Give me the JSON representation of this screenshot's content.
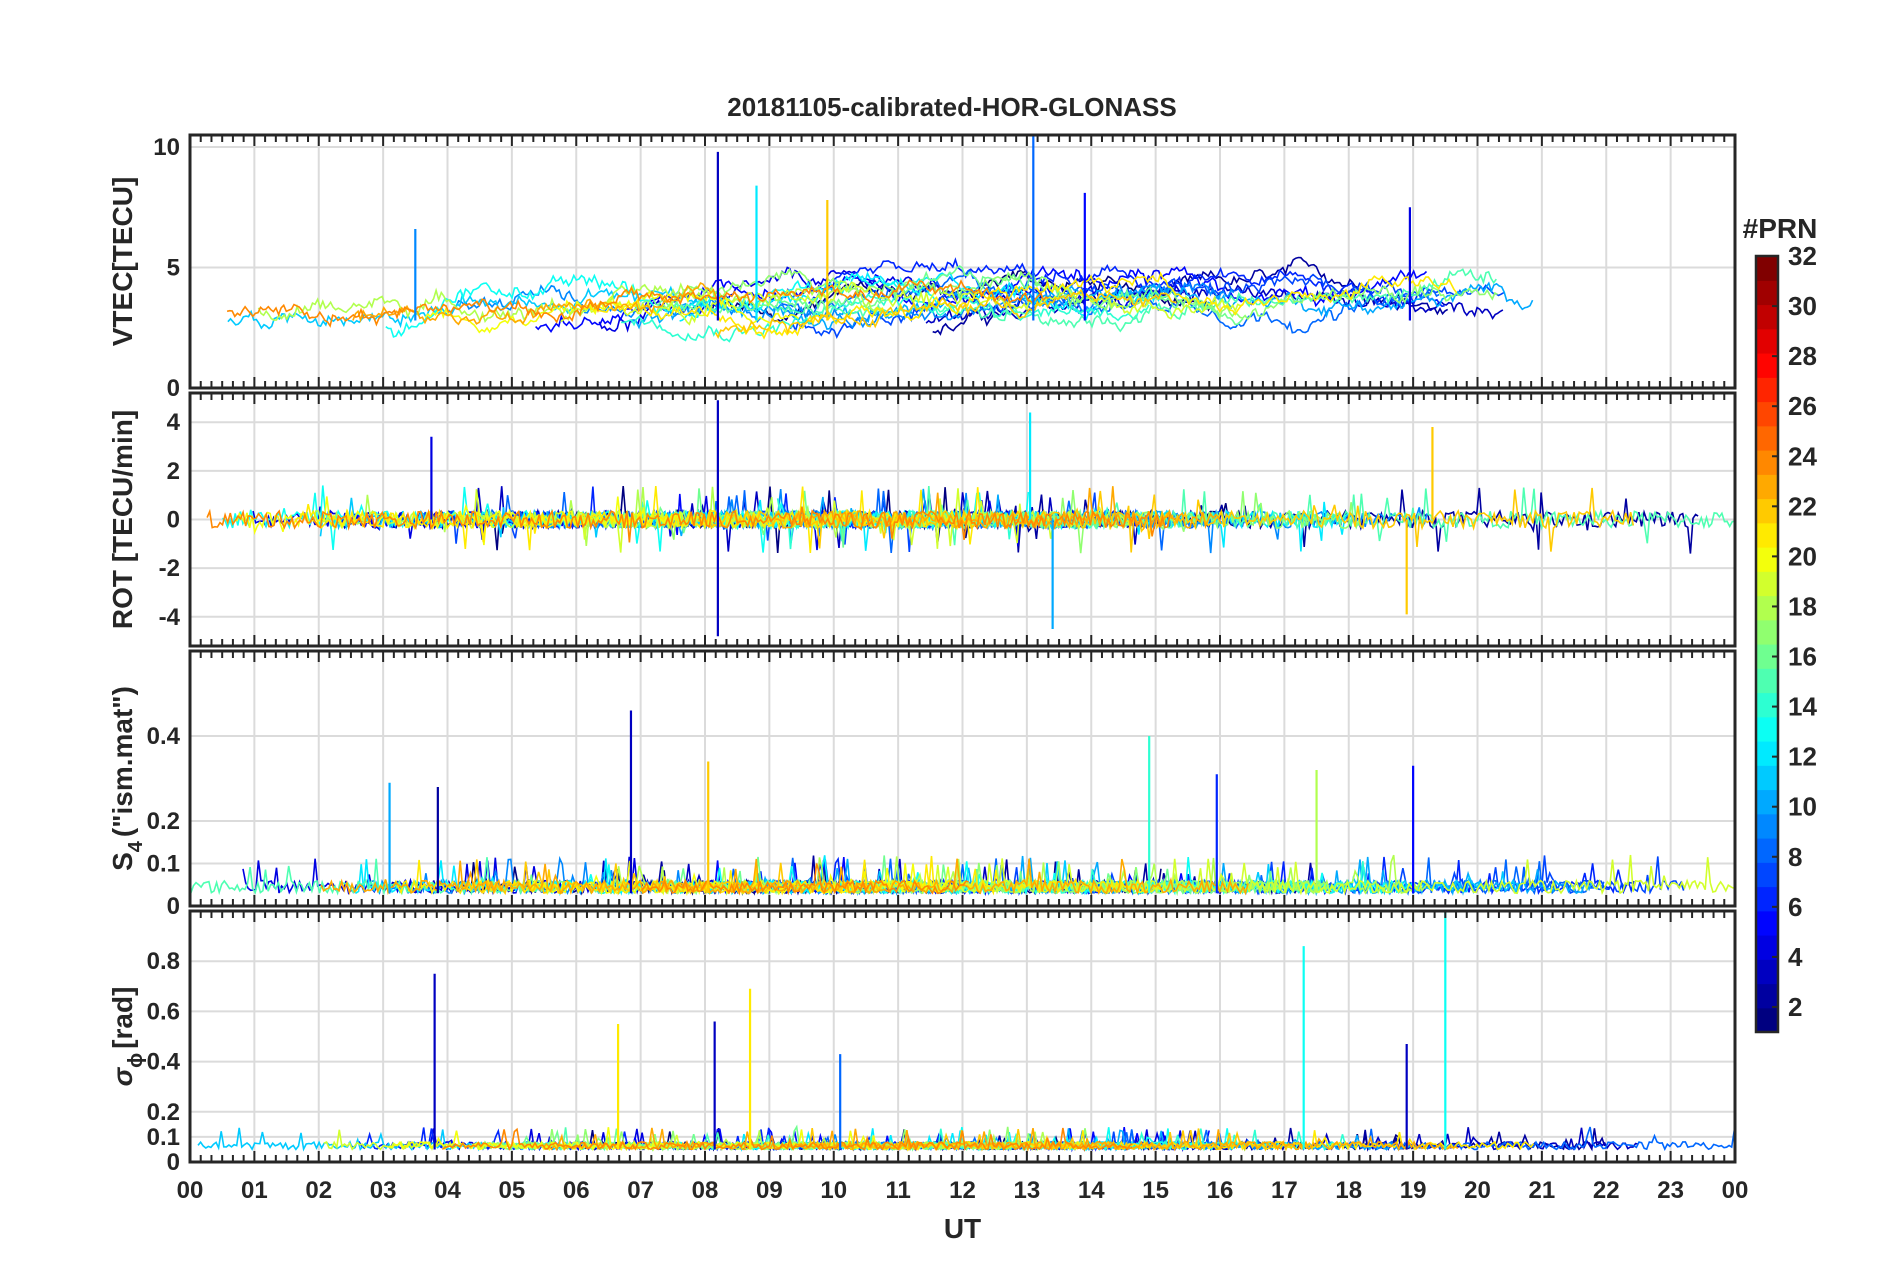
{
  "title": "20181105-calibrated-HOR-GLONASS",
  "chart_data": [
    {
      "id": "vtec",
      "type": "line",
      "title": "20181105-calibrated-HOR-GLONASS",
      "ylabel": "VTEC[TECU]",
      "xlabel": "",
      "ylim": [
        0,
        10.5
      ],
      "yticks": [
        0,
        5,
        10
      ],
      "ytick_labels": [
        "0",
        "5",
        "10"
      ],
      "baseline": 2.8,
      "amp": 1.2,
      "spikiness": 0.3,
      "grid": true,
      "series_hint": "one line per GLONASS PRN (1-32), colour-coded by PRN",
      "highlights": [
        {
          "prn": 9,
          "t": 3.5,
          "v": 6.6
        },
        {
          "prn": 3,
          "t": 8.2,
          "v": 9.8
        },
        {
          "prn": 12,
          "t": 8.8,
          "v": 8.4
        },
        {
          "prn": 8,
          "t": 13.1,
          "v": 10.8
        },
        {
          "prn": 5,
          "t": 13.9,
          "v": 8.1
        },
        {
          "prn": 4,
          "t": 18.95,
          "v": 7.5
        },
        {
          "prn": 22,
          "t": 9.9,
          "v": 7.8
        }
      ]
    },
    {
      "id": "rot",
      "type": "line",
      "ylabel": "ROT [TECU/min]",
      "xlabel": "",
      "ylim": [
        -5.2,
        5.2
      ],
      "yticks": [
        -4,
        -2,
        0,
        2,
        4
      ],
      "ytick_labels": [
        "-4",
        "-2",
        "0",
        "2",
        "4"
      ],
      "baseline": 0,
      "amp": 0.35,
      "spikiness": 1.5,
      "grid": true,
      "series_hint": "rate of TEC per PRN",
      "highlights": [
        {
          "prn": 3,
          "t": 8.2,
          "v": 4.9
        },
        {
          "prn": 3,
          "t": 8.2,
          "v": -4.8
        },
        {
          "prn": 12,
          "t": 13.05,
          "v": 4.4
        },
        {
          "prn": 10,
          "t": 13.4,
          "v": -4.5
        },
        {
          "prn": 4,
          "t": 3.75,
          "v": 3.4
        },
        {
          "prn": 22,
          "t": 18.9,
          "v": -3.9
        },
        {
          "prn": 22,
          "t": 19.3,
          "v": 3.8
        }
      ]
    },
    {
      "id": "s4",
      "type": "line",
      "ylabel_main": "S",
      "ylabel_sub": "4",
      "ylabel_rest": "(\"ism.mat\")",
      "xlabel": "",
      "ylim": [
        0,
        0.6
      ],
      "yticks": [
        0,
        0.1,
        0.2,
        0.4
      ],
      "ytick_labels": [
        "0",
        "0.1",
        "0.2",
        "0.4"
      ],
      "baseline": 0.03,
      "amp": 0.03,
      "spikiness": 1.2,
      "grid": true,
      "series_hint": "amplitude scintillation index S4 per PRN",
      "highlights": [
        {
          "prn": 3,
          "t": 6.85,
          "v": 0.46
        },
        {
          "prn": 14,
          "t": 14.9,
          "v": 0.4
        },
        {
          "prn": 22,
          "t": 8.05,
          "v": 0.34
        },
        {
          "prn": 5,
          "t": 19.0,
          "v": 0.33
        },
        {
          "prn": 6,
          "t": 15.95,
          "v": 0.31
        },
        {
          "prn": 10,
          "t": 3.1,
          "v": 0.29
        },
        {
          "prn": 2,
          "t": 3.85,
          "v": 0.28
        },
        {
          "prn": 18,
          "t": 17.5,
          "v": 0.32
        }
      ]
    },
    {
      "id": "sigphi",
      "type": "line",
      "ylabel_main": "σ",
      "ylabel_sub": "ϕ",
      "ylabel_rest": "[rad]",
      "xlabel": "UT",
      "ylim": [
        0,
        1.0
      ],
      "yticks": [
        0,
        0.1,
        0.2,
        0.4,
        0.6,
        0.8
      ],
      "ytick_labels": [
        "0",
        "0.1",
        "0.2",
        "0.4",
        "0.6",
        "0.8"
      ],
      "baseline": 0.05,
      "amp": 0.03,
      "spikiness": 1.0,
      "grid": true,
      "series_hint": "phase scintillation index per PRN",
      "highlights": [
        {
          "prn": 3,
          "t": 3.8,
          "v": 0.75
        },
        {
          "prn": 21,
          "t": 8.7,
          "v": 0.69
        },
        {
          "prn": 21,
          "t": 6.65,
          "v": 0.55
        },
        {
          "prn": 3,
          "t": 8.15,
          "v": 0.56
        },
        {
          "prn": 13,
          "t": 17.3,
          "v": 0.86
        },
        {
          "prn": 13,
          "t": 19.5,
          "v": 1.0
        },
        {
          "prn": 3,
          "t": 18.9,
          "v": 0.47
        },
        {
          "prn": 8,
          "t": 10.1,
          "v": 0.43
        }
      ]
    }
  ],
  "x_axis": {
    "label": "UT",
    "range": [
      0,
      24
    ],
    "tick_labels": [
      "00",
      "01",
      "02",
      "03",
      "04",
      "05",
      "06",
      "07",
      "08",
      "09",
      "10",
      "11",
      "12",
      "13",
      "14",
      "15",
      "16",
      "17",
      "18",
      "19",
      "20",
      "21",
      "22",
      "23",
      "00"
    ]
  },
  "colorbar": {
    "title": "#PRN",
    "range": [
      1,
      32
    ],
    "tick_values": [
      2,
      4,
      6,
      8,
      10,
      12,
      14,
      16,
      18,
      20,
      22,
      24,
      26,
      28,
      30,
      32
    ],
    "tick_labels": [
      "2",
      "4",
      "6",
      "8",
      "10",
      "12",
      "14",
      "16",
      "18",
      "20",
      "22",
      "24",
      "26",
      "28",
      "30",
      "32"
    ],
    "colormap": "jet"
  },
  "colors": {
    "axis": "#262626",
    "grid": "#dbdbdb",
    "background": "#ffffff"
  }
}
